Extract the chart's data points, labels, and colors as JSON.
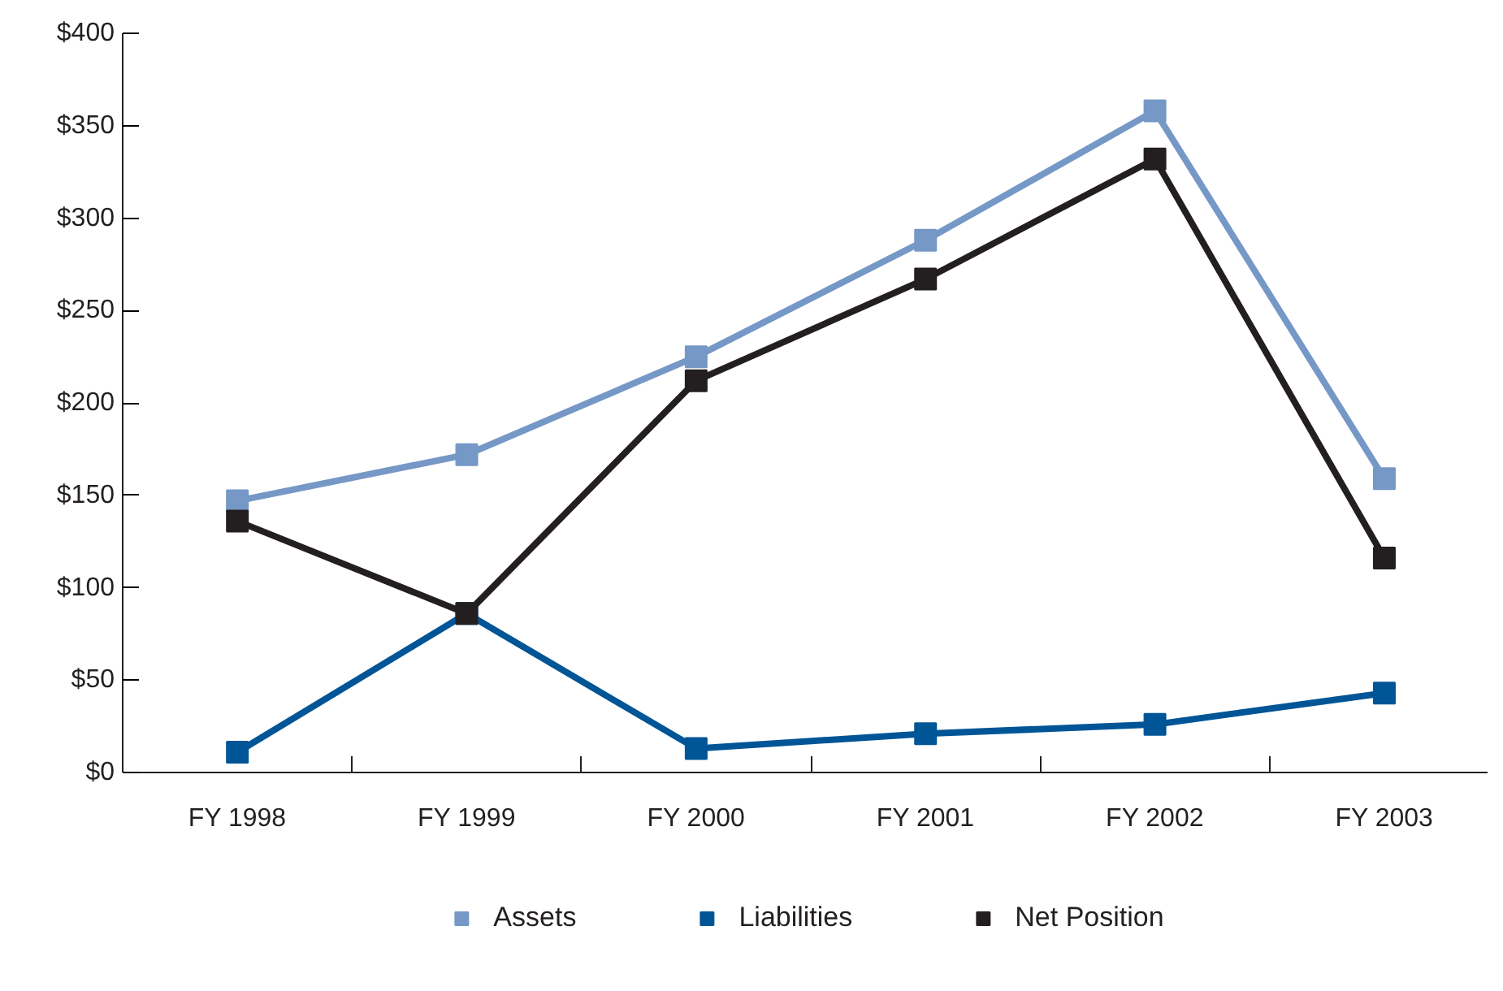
{
  "chart_data": {
    "type": "line",
    "categories": [
      "FY 1998",
      "FY 1999",
      "FY 2000",
      "FY 2001",
      "FY 2002",
      "FY 2003"
    ],
    "series": [
      {
        "name": "Assets",
        "color": "#7598c6",
        "values": [
          147,
          172,
          225,
          288,
          358,
          159
        ]
      },
      {
        "name": "Liabilities",
        "color": "#005596",
        "values": [
          11,
          86,
          13,
          21,
          26,
          43
        ]
      },
      {
        "name": "Net Position",
        "color": "#231f20",
        "values": [
          136,
          86,
          212,
          267,
          332,
          116
        ]
      }
    ],
    "ylim": [
      0,
      400
    ],
    "yticks": [
      {
        "value": 0,
        "label": "$0"
      },
      {
        "value": 50,
        "label": "$50"
      },
      {
        "value": 100,
        "label": "$100"
      },
      {
        "value": 150,
        "label": "$150"
      },
      {
        "value": 200,
        "label": "$200"
      },
      {
        "value": 250,
        "label": "$250"
      },
      {
        "value": 300,
        "label": "$300"
      },
      {
        "value": 350,
        "label": "$350"
      },
      {
        "value": 400,
        "label": "$400"
      }
    ],
    "grid": false,
    "legend": "bottom",
    "marker": "square",
    "line_style": "solid"
  }
}
